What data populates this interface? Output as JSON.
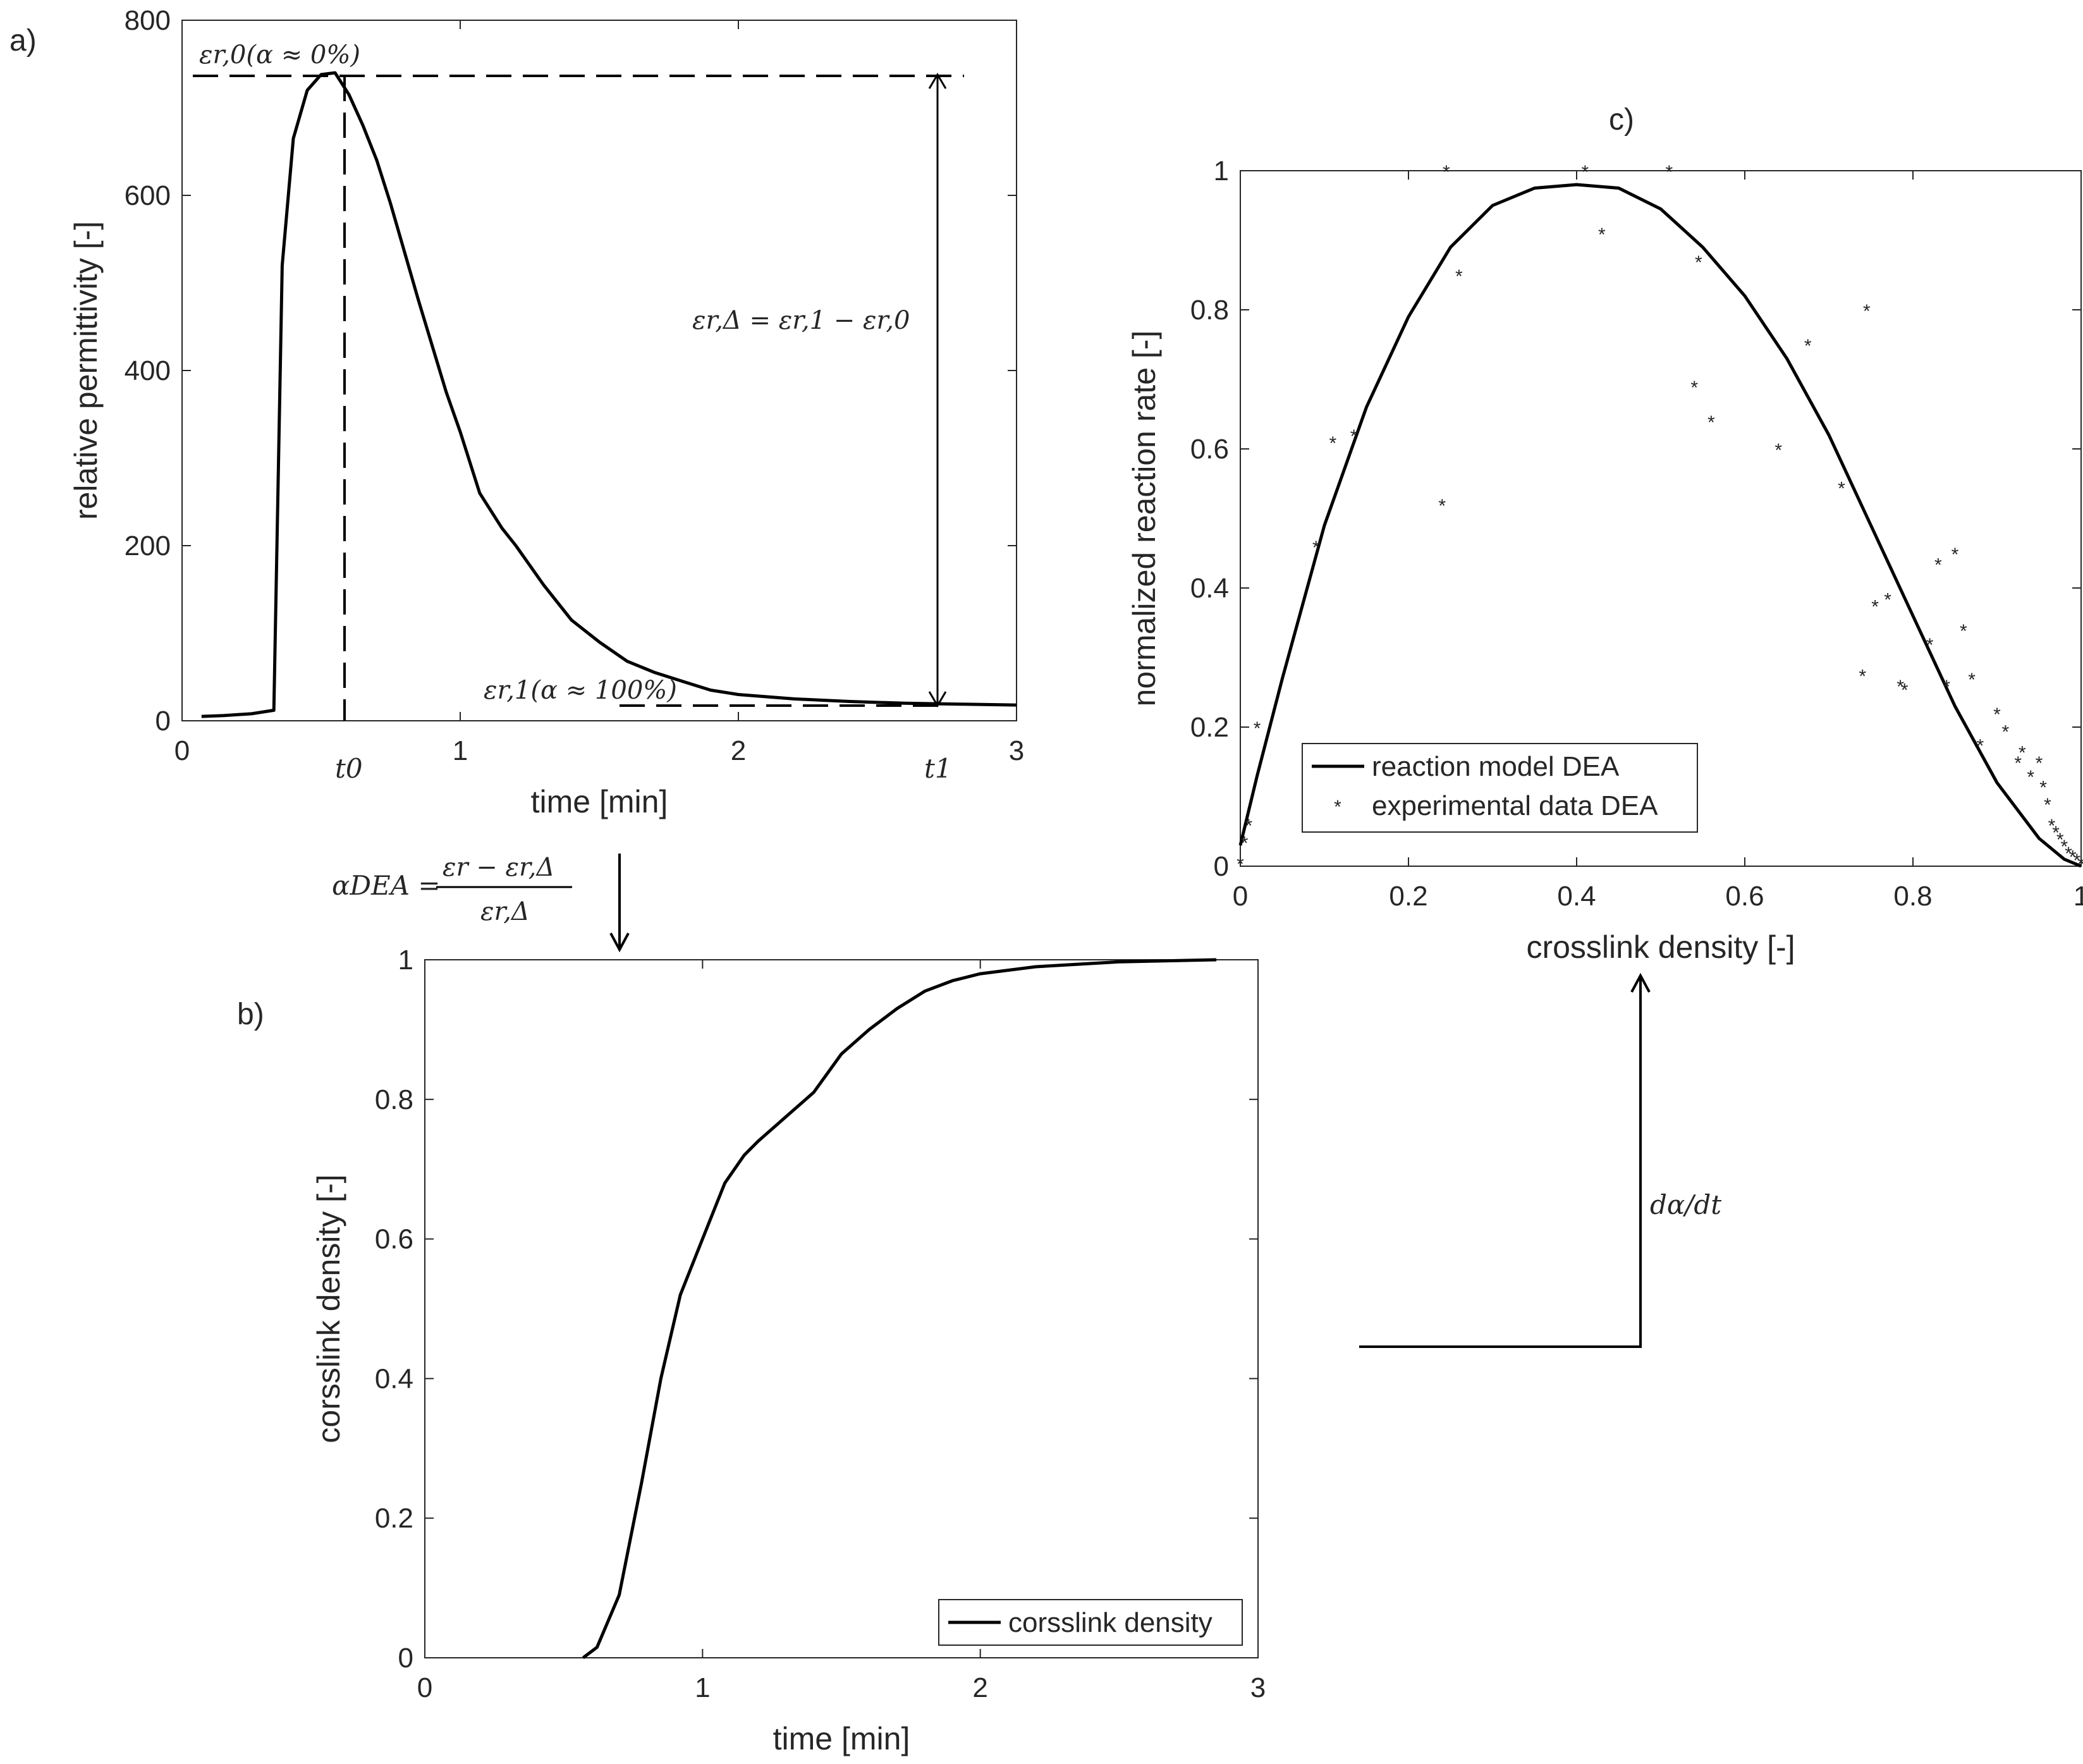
{
  "panels": {
    "a": {
      "label": "a)"
    },
    "b": {
      "label": "b)"
    },
    "c": {
      "label": "c)"
    }
  },
  "annotations": {
    "eps0": "εr,0(α ≈ 0%)",
    "eps1": "εr,1(α ≈ 100%)",
    "delta": "εr,Δ = εr,1 − εr,0",
    "t0": "t0",
    "t1": "t1",
    "alpha_lhs": "αDEA =",
    "alpha_num": "εr − εr,Δ",
    "alpha_den": "εr,Δ",
    "rate": "dα/dt"
  },
  "chart_data": [
    {
      "id": "a",
      "type": "line",
      "xlabel": "time [min]",
      "ylabel": "relative permittivity [-]",
      "xlim": [
        0,
        3
      ],
      "ylim": [
        0,
        800
      ],
      "xticks": [
        0,
        1,
        2,
        3
      ],
      "yticks": [
        0,
        200,
        400,
        600,
        800
      ],
      "grid": false,
      "series": [
        {
          "x": [
            0.07,
            0.15,
            0.25,
            0.33,
            0.36,
            0.4,
            0.45,
            0.5,
            0.55,
            0.6,
            0.65,
            0.7,
            0.75,
            0.85,
            0.95,
            1.0,
            1.07,
            1.15,
            1.2,
            1.3,
            1.4,
            1.5,
            1.6,
            1.7,
            1.8,
            1.9,
            2.0,
            2.2,
            2.4,
            2.6,
            2.8,
            3.0
          ],
          "y": [
            5,
            6,
            8,
            12,
            520,
            665,
            720,
            738,
            740,
            715,
            680,
            640,
            590,
            480,
            375,
            330,
            260,
            220,
            200,
            155,
            115,
            90,
            68,
            55,
            45,
            35,
            30,
            25,
            22,
            20,
            19,
            18
          ]
        }
      ]
    },
    {
      "id": "b",
      "type": "line",
      "xlabel": "time [min]",
      "ylabel": "corsslink density [-]",
      "xlim": [
        0,
        3
      ],
      "ylim": [
        0,
        1
      ],
      "xticks": [
        0,
        1,
        2,
        3
      ],
      "yticks": [
        0,
        0.2,
        0.4,
        0.6,
        0.8,
        1
      ],
      "grid": false,
      "legend": "bottom-right",
      "series": [
        {
          "name": "corsslink density",
          "x": [
            0.57,
            0.62,
            0.7,
            0.78,
            0.85,
            0.92,
            1.0,
            1.08,
            1.15,
            1.2,
            1.3,
            1.4,
            1.5,
            1.6,
            1.7,
            1.8,
            1.9,
            2.0,
            2.2,
            2.5,
            2.85
          ],
          "y": [
            0,
            0.015,
            0.09,
            0.25,
            0.4,
            0.52,
            0.6,
            0.68,
            0.72,
            0.74,
            0.775,
            0.81,
            0.865,
            0.9,
            0.93,
            0.955,
            0.97,
            0.98,
            0.99,
            0.997,
            1.0
          ]
        }
      ]
    },
    {
      "id": "c",
      "type": "scatter",
      "xlabel": "crosslink density [-]",
      "ylabel": "normalized reaction rate [-]",
      "xlim": [
        0,
        1
      ],
      "ylim": [
        0,
        1
      ],
      "xticks": [
        0,
        0.2,
        0.4,
        0.6,
        0.8,
        1
      ],
      "yticks": [
        0,
        0.2,
        0.4,
        0.6,
        0.8,
        1
      ],
      "grid": false,
      "legend": "bottom-left",
      "series": [
        {
          "name": "reaction model DEA",
          "type": "line",
          "x": [
            0,
            0.02,
            0.05,
            0.1,
            0.15,
            0.2,
            0.25,
            0.3,
            0.35,
            0.4,
            0.45,
            0.5,
            0.55,
            0.6,
            0.65,
            0.7,
            0.75,
            0.8,
            0.85,
            0.9,
            0.95,
            0.98,
            1.0
          ],
          "y": [
            0.03,
            0.13,
            0.27,
            0.49,
            0.66,
            0.79,
            0.89,
            0.95,
            0.975,
            0.98,
            0.975,
            0.945,
            0.89,
            0.82,
            0.73,
            0.62,
            0.49,
            0.36,
            0.23,
            0.12,
            0.04,
            0.01,
            0.0
          ]
        },
        {
          "name": "experimental data DEA",
          "type": "scatter",
          "x": [
            0.0,
            0.005,
            0.01,
            0.02,
            0.09,
            0.11,
            0.135,
            0.24,
            0.245,
            0.26,
            0.41,
            0.43,
            0.51,
            0.54,
            0.545,
            0.56,
            0.64,
            0.675,
            0.715,
            0.74,
            0.745,
            0.755,
            0.77,
            0.785,
            0.79,
            0.82,
            0.83,
            0.84,
            0.85,
            0.86,
            0.87,
            0.88,
            0.9,
            0.91,
            0.925,
            0.93,
            0.94,
            0.95,
            0.955,
            0.96,
            0.965,
            0.97,
            0.975,
            0.98,
            0.985,
            0.99,
            0.995,
            1.0
          ],
          "y": [
            0.005,
            0.035,
            0.06,
            0.2,
            0.46,
            0.61,
            0.62,
            0.52,
            1.0,
            0.85,
            1.0,
            0.91,
            1.0,
            0.69,
            0.87,
            0.64,
            0.6,
            0.75,
            0.545,
            0.275,
            0.8,
            0.375,
            0.385,
            0.26,
            0.255,
            0.32,
            0.435,
            0.26,
            0.45,
            0.34,
            0.27,
            0.175,
            0.22,
            0.195,
            0.15,
            0.165,
            0.13,
            0.15,
            0.115,
            0.09,
            0.06,
            0.05,
            0.04,
            0.03,
            0.02,
            0.015,
            0.01,
            0.005
          ]
        }
      ]
    }
  ]
}
